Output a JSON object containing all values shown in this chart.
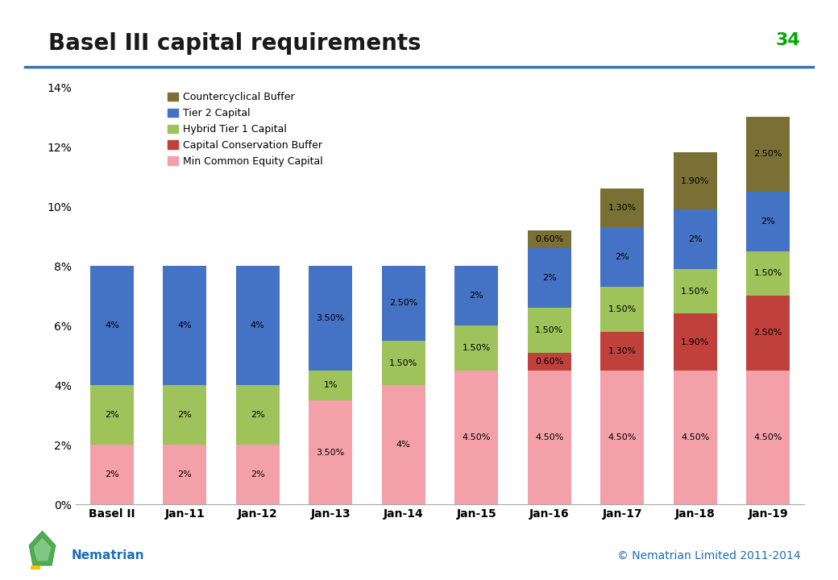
{
  "title": "Basel III capital requirements",
  "slide_number": "34",
  "categories": [
    "Basel II",
    "Jan-11",
    "Jan-12",
    "Jan-13",
    "Jan-14",
    "Jan-15",
    "Jan-16",
    "Jan-17",
    "Jan-18",
    "Jan-19"
  ],
  "series": {
    "Min Common Equity Capital": [
      2.0,
      2.0,
      2.0,
      3.5,
      4.0,
      4.5,
      4.5,
      4.5,
      4.5,
      4.5
    ],
    "Capital Conservation Buffer": [
      0.0,
      0.0,
      0.0,
      0.0,
      0.0,
      0.0,
      0.6,
      1.3,
      1.9,
      2.5
    ],
    "Hybrid Tier 1 Capital": [
      2.0,
      2.0,
      2.0,
      1.0,
      1.5,
      1.5,
      1.5,
      1.5,
      1.5,
      1.5
    ],
    "Tier 2 Capital": [
      4.0,
      4.0,
      4.0,
      3.5,
      2.5,
      2.0,
      2.0,
      2.0,
      2.0,
      2.0
    ],
    "Countercyclical Buffer": [
      0.0,
      0.0,
      0.0,
      0.0,
      0.0,
      0.0,
      0.6,
      1.3,
      1.9,
      2.5
    ]
  },
  "colors": {
    "Min Common Equity Capital": "#F4A0A8",
    "Capital Conservation Buffer": "#C0413C",
    "Hybrid Tier 1 Capital": "#9DC35A",
    "Tier 2 Capital": "#4472C4",
    "Countercyclical Buffer": "#7A7035"
  },
  "labels": {
    "Min Common Equity Capital": [
      "2%",
      "2%",
      "2%",
      "3.50%",
      "4%",
      "4.50%",
      "4.50%",
      "4.50%",
      "4.50%",
      "4.50%"
    ],
    "Capital Conservation Buffer": [
      "",
      "",
      "",
      "",
      "",
      "",
      "0.60%",
      "1.30%",
      "1.90%",
      "2.50%"
    ],
    "Hybrid Tier 1 Capital": [
      "2%",
      "2%",
      "2%",
      "1%",
      "1.50%",
      "1.50%",
      "1.50%",
      "1.50%",
      "1.50%",
      "1.50%"
    ],
    "Tier 2 Capital": [
      "4%",
      "4%",
      "4%",
      "3.50%",
      "2.50%",
      "2%",
      "2%",
      "2%",
      "2%",
      "2%"
    ],
    "Countercyclical Buffer": [
      "",
      "",
      "",
      "",
      "",
      "",
      "0.60%",
      "1.30%",
      "1.90%",
      "2.50%"
    ]
  },
  "ylim": [
    0,
    14
  ],
  "yticks": [
    0,
    2,
    4,
    6,
    8,
    10,
    12,
    14
  ],
  "ytick_labels": [
    "0%",
    "2%",
    "4%",
    "6%",
    "8%",
    "10%",
    "12%",
    "14%"
  ],
  "legend_order": [
    "Countercyclical Buffer",
    "Tier 2 Capital",
    "Hybrid Tier 1 Capital",
    "Capital Conservation Buffer",
    "Min Common Equity Capital"
  ],
  "title_color": "#1a1a1a",
  "title_fontsize": 20,
  "slide_number_color": "#00AA00",
  "background_color": "#FFFFFF",
  "line_color": "#2E75B6",
  "footer_text": "© Nematrian Limited 2011-2014",
  "footer_color": "#1E6DB5",
  "nematrian_color": "#1E6DB5",
  "series_order": [
    "Min Common Equity Capital",
    "Capital Conservation Buffer",
    "Hybrid Tier 1 Capital",
    "Tier 2 Capital",
    "Countercyclical Buffer"
  ]
}
